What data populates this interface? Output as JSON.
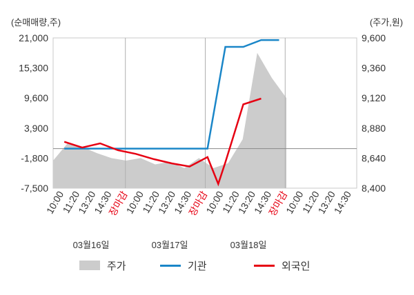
{
  "chart_data": {
    "type": "line",
    "left_unit_label": "(순매매량,주)",
    "right_unit_label": "(주가,원)",
    "left_axis": {
      "ticks": [
        21000,
        15300,
        9600,
        3900,
        -1800,
        -7500
      ],
      "tick_labels": [
        "21,000",
        "15,300",
        "9,600",
        "3,900",
        "-1,800",
        "-7,500"
      ],
      "ylim": [
        -7500,
        21000
      ]
    },
    "right_axis": {
      "ticks": [
        9600,
        9360,
        9120,
        8880,
        8640,
        8400
      ],
      "tick_labels": [
        "9,600",
        "9,360",
        "9,120",
        "8,880",
        "8,640",
        "8,400"
      ],
      "ylim": [
        8400,
        9600
      ]
    },
    "x_tick_labels": [
      "10:00",
      "11:20",
      "13:20",
      "14:30",
      "장마감",
      "10:00",
      "11:20",
      "13:20",
      "14:30",
      "장마감",
      "10:00",
      "11:20",
      "13:20",
      "14:30",
      "장마감",
      "10:00",
      "11:20",
      "13:20",
      "14:30"
    ],
    "close_label": "장마감",
    "dates": [
      "03월16일",
      "03월17일",
      "03월18일"
    ],
    "legend": [
      "주가",
      "기관",
      "외국인"
    ],
    "colors": {
      "price": "#cccccc",
      "institution": "#1a86c8",
      "foreign": "#e60012",
      "close_text": "#e60012",
      "grid": "#c8c8c8"
    },
    "series": [
      {
        "name": "기관",
        "x": [
          1,
          5,
          9,
          10,
          11,
          12,
          13
        ],
        "values": [
          0,
          0,
          0,
          19300,
          19300,
          20600,
          20600
        ]
      },
      {
        "name": "외국인",
        "x": [
          1,
          2,
          3,
          4,
          5,
          6,
          7,
          8,
          9,
          9.6,
          10,
          11,
          12
        ],
        "values": [
          1300,
          200,
          1000,
          -300,
          -1000,
          -2000,
          -2800,
          -3400,
          -1600,
          -6700,
          -2600,
          8400,
          9500
        ]
      },
      {
        "name": "주가",
        "x": [
          0,
          1,
          2,
          3,
          4,
          5,
          6,
          7,
          8,
          9,
          10,
          11,
          12,
          13,
          14,
          15,
          16
        ],
        "values": [
          8620,
          8760,
          8730,
          8680,
          8640,
          8620,
          8640,
          8590,
          8610,
          8560,
          8640,
          8560,
          8600,
          8790,
          9480,
          9280,
          9120
        ]
      }
    ]
  }
}
